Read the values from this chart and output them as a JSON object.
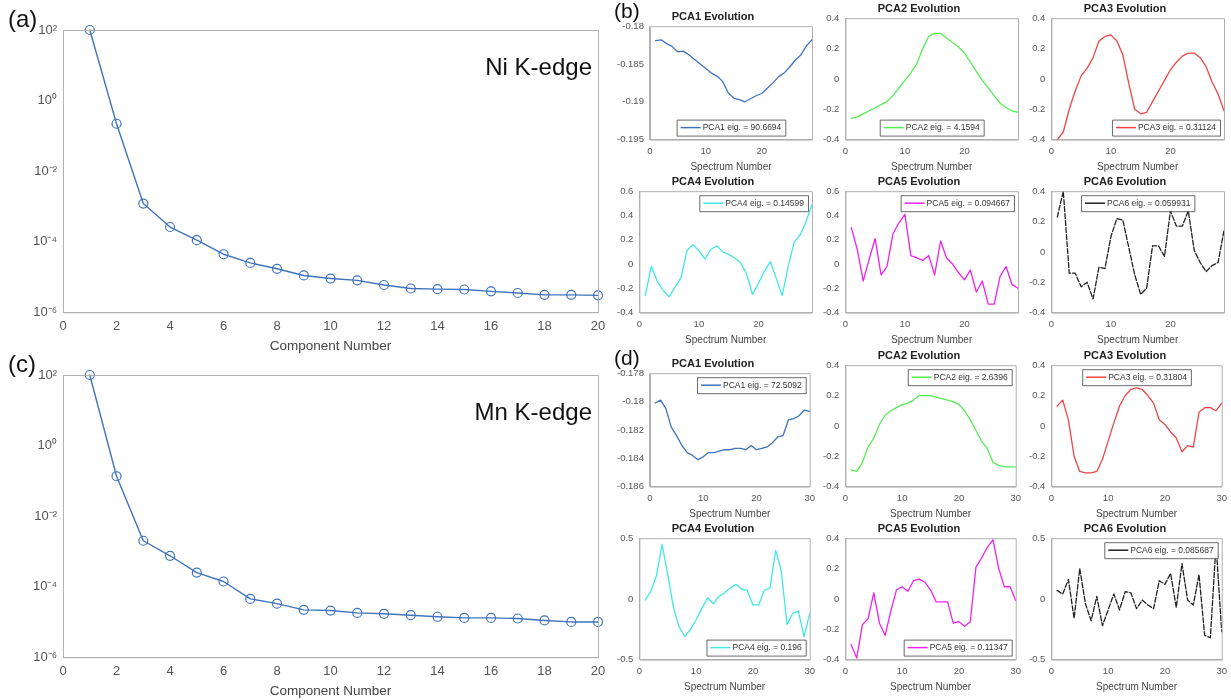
{
  "chart_data": [
    {
      "type": "line",
      "xlabel": "Component Number",
      "annotations": [
        "(a)",
        "Ni K-edge"
      ],
      "marker": "circle",
      "log": true,
      "xlim": [
        0,
        20
      ],
      "xticks": [
        0,
        2,
        4,
        6,
        8,
        10,
        12,
        14,
        16,
        18,
        20
      ],
      "ylim": [
        1e-06,
        100
      ],
      "yticks": [
        {
          "value": 1e-06,
          "label": "10⁻⁶"
        },
        {
          "value": 0.0001,
          "label": "10⁻⁴"
        },
        {
          "value": 0.01,
          "label": "10⁻²"
        },
        {
          "value": 1,
          "label": "10⁰"
        },
        {
          "value": 100,
          "label": "10²"
        }
      ],
      "x": [
        1,
        2,
        3,
        4,
        5,
        6,
        7,
        8,
        9,
        10,
        11,
        12,
        13,
        14,
        15,
        16,
        17,
        18,
        19,
        20
      ],
      "series": [
        {
          "color": "#3f74bd",
          "values": [
            100,
            0.22,
            0.0012,
            0.00026,
            0.00011,
            4.4e-05,
            2.5e-05,
            1.7e-05,
            1.1e-05,
            9e-06,
            8e-06,
            5.9e-06,
            4.7e-06,
            4.5e-06,
            4.4e-06,
            3.9e-06,
            3.5e-06,
            3.1e-06,
            3.1e-06,
            3e-06
          ]
        }
      ]
    },
    {
      "type": "line",
      "xlabel": "Component Number",
      "annotations": [
        "(c)",
        "Mn K-edge"
      ],
      "marker": "circle",
      "log": true,
      "xlim": [
        0,
        20
      ],
      "xticks": [
        0,
        2,
        4,
        6,
        8,
        10,
        12,
        14,
        16,
        18,
        20
      ],
      "ylim": [
        1e-06,
        100
      ],
      "yticks": [
        {
          "value": 1e-06,
          "label": "10⁻⁶"
        },
        {
          "value": 0.0001,
          "label": "10⁻⁴"
        },
        {
          "value": 0.01,
          "label": "10⁻²"
        },
        {
          "value": 1,
          "label": "10⁰"
        },
        {
          "value": 100,
          "label": "10²"
        }
      ],
      "x": [
        1,
        2,
        3,
        4,
        5,
        6,
        7,
        8,
        9,
        10,
        11,
        12,
        13,
        14,
        15,
        16,
        17,
        18,
        19,
        20
      ],
      "series": [
        {
          "color": "#3f74bd",
          "values": [
            100,
            0.135,
            0.002,
            0.00075,
            0.00025,
            0.00014,
            4.5e-05,
            3.3e-05,
            2.2e-05,
            2.1e-05,
            1.8e-05,
            1.7e-05,
            1.55e-05,
            1.4e-05,
            1.3e-05,
            1.3e-05,
            1.25e-05,
            1.1e-05,
            1e-05,
            1e-05
          ]
        }
      ]
    },
    {
      "type": "line",
      "title": "PCA1 Evolution",
      "xlabel": "Spectrum Number",
      "annotations": [
        "(b)"
      ],
      "legend": "bottom",
      "xlim": [
        0,
        29
      ],
      "xticks": [
        0,
        10,
        20
      ],
      "ylim": [
        -0.195,
        -0.18
      ],
      "yticks": [
        -0.195,
        -0.19,
        -0.185,
        -0.18
      ],
      "x": [
        1,
        2,
        3,
        4,
        5,
        6,
        7,
        8,
        9,
        10,
        11,
        12,
        13,
        14,
        15,
        16,
        17,
        18,
        19,
        20,
        21,
        22,
        23,
        24,
        25,
        26,
        27,
        28,
        29
      ],
      "series": [
        {
          "name": "PCA1 eig. = 90.6694",
          "color": "#3f74bd",
          "values": [
            -0.1819,
            -0.1818,
            -0.1823,
            -0.1827,
            -0.1834,
            -0.1833,
            -0.1838,
            -0.1844,
            -0.185,
            -0.1856,
            -0.1862,
            -0.1866,
            -0.1873,
            -0.1888,
            -0.1895,
            -0.1897,
            -0.19,
            -0.1896,
            -0.1892,
            -0.1889,
            -0.1882,
            -0.1875,
            -0.1867,
            -0.1862,
            -0.1854,
            -0.1845,
            -0.1838,
            -0.1826,
            -0.1818
          ]
        }
      ]
    },
    {
      "type": "line",
      "title": "PCA2 Evolution",
      "xlabel": "Spectrum Number",
      "legend": "bottom",
      "xlim": [
        0,
        29
      ],
      "xticks": [
        0,
        10,
        20
      ],
      "ylim": [
        -0.4,
        0.4
      ],
      "yticks": [
        -0.4,
        -0.2,
        0,
        0.2,
        0.4
      ],
      "x": [
        1,
        2,
        3,
        4,
        5,
        6,
        7,
        8,
        9,
        10,
        11,
        12,
        13,
        14,
        15,
        16,
        17,
        18,
        19,
        20,
        21,
        22,
        23,
        24,
        25,
        26,
        27,
        28,
        29
      ],
      "series": [
        {
          "name": "PCA2 eig. = 4.1594",
          "color": "#55ee55",
          "values": [
            -0.26,
            -0.25,
            -0.23,
            -0.21,
            -0.19,
            -0.17,
            -0.15,
            -0.11,
            -0.06,
            -0.01,
            0.04,
            0.1,
            0.2,
            0.28,
            0.3,
            0.3,
            0.27,
            0.24,
            0.21,
            0.17,
            0.11,
            0.05,
            -0.01,
            -0.06,
            -0.11,
            -0.16,
            -0.19,
            -0.21,
            -0.22
          ]
        }
      ]
    },
    {
      "type": "line",
      "title": "PCA3 Evolution",
      "xlabel": "Spectrum Number",
      "legend": "bottom right",
      "xlim": [
        0,
        29
      ],
      "xticks": [
        0,
        10,
        20
      ],
      "ylim": [
        -0.4,
        0.4
      ],
      "yticks": [
        -0.4,
        -0.2,
        0,
        0.2,
        0.4
      ],
      "x": [
        1,
        2,
        3,
        4,
        5,
        6,
        7,
        8,
        9,
        10,
        11,
        12,
        13,
        14,
        15,
        16,
        17,
        18,
        19,
        20,
        21,
        22,
        23,
        24,
        25,
        26,
        27,
        28,
        29
      ],
      "series": [
        {
          "name": "PCA3 eig. = 0.31124",
          "color": "#f04545",
          "values": [
            -0.4,
            -0.35,
            -0.2,
            -0.08,
            0.02,
            0.07,
            0.14,
            0.25,
            0.28,
            0.29,
            0.25,
            0.16,
            -0.03,
            -0.2,
            -0.23,
            -0.22,
            -0.15,
            -0.08,
            -0.01,
            0.06,
            0.11,
            0.15,
            0.17,
            0.17,
            0.14,
            0.08,
            -0.02,
            -0.1,
            -0.21
          ]
        }
      ]
    },
    {
      "type": "line",
      "title": "PCA4 Evolution",
      "xlabel": "Spectrum Number",
      "legend": "top right",
      "xlim": [
        0,
        29
      ],
      "xticks": [
        0,
        10,
        20
      ],
      "ylim": [
        -0.4,
        0.6
      ],
      "yticks": [
        -0.4,
        -0.2,
        0,
        0.2,
        0.4,
        0.6
      ],
      "x": [
        1,
        2,
        3,
        4,
        5,
        6,
        7,
        8,
        9,
        10,
        11,
        12,
        13,
        14,
        15,
        16,
        17,
        18,
        19,
        20,
        21,
        22,
        23,
        24,
        25,
        26,
        27,
        28,
        29
      ],
      "series": [
        {
          "name": "PCA4 eig. = 0.14599",
          "color": "#40e8e8",
          "values": [
            -0.26,
            -0.02,
            -0.14,
            -0.22,
            -0.27,
            -0.19,
            -0.11,
            0.11,
            0.16,
            0.11,
            0.04,
            0.12,
            0.15,
            0.1,
            0.08,
            0.05,
            0.01,
            -0.08,
            -0.25,
            -0.16,
            -0.06,
            0.02,
            -0.12,
            -0.26,
            -0.02,
            0.18,
            0.24,
            0.35,
            0.49
          ]
        }
      ]
    },
    {
      "type": "line",
      "title": "PCA5 Evolution",
      "xlabel": "Spectrum Number",
      "legend": "top right",
      "xlim": [
        0,
        29
      ],
      "xticks": [
        0,
        10,
        20
      ],
      "ylim": [
        -0.4,
        0.6
      ],
      "yticks": [
        -0.4,
        -0.2,
        0,
        0.2,
        0.4,
        0.6
      ],
      "x": [
        1,
        2,
        3,
        4,
        5,
        6,
        7,
        8,
        9,
        10,
        11,
        12,
        13,
        14,
        15,
        16,
        17,
        18,
        19,
        20,
        21,
        22,
        23,
        24,
        25,
        26,
        27,
        28,
        29
      ],
      "series": [
        {
          "name": "PCA5 eig. = 0.094667",
          "color": "#ee22ee",
          "values": [
            0.3,
            0.12,
            -0.14,
            0.04,
            0.21,
            -0.09,
            -0.02,
            0.25,
            0.34,
            0.41,
            0.07,
            0.05,
            0.03,
            0.07,
            -0.09,
            0.19,
            0.05,
            0,
            -0.07,
            -0.13,
            -0.05,
            -0.23,
            -0.14,
            -0.33,
            -0.33,
            -0.1,
            -0.02,
            -0.17,
            -0.2
          ]
        }
      ]
    },
    {
      "type": "line",
      "title": "PCA6 Evolution",
      "xlabel": "Spectrum Number",
      "legend": "top",
      "line_style": "dashed",
      "xlim": [
        0,
        29
      ],
      "xticks": [
        0,
        10,
        20
      ],
      "ylim": [
        -0.4,
        0.4
      ],
      "yticks": [
        -0.4,
        -0.2,
        0,
        0.2,
        0.4
      ],
      "x": [
        1,
        2,
        3,
        4,
        5,
        6,
        7,
        8,
        9,
        10,
        11,
        12,
        13,
        14,
        15,
        16,
        17,
        18,
        19,
        20,
        21,
        22,
        23,
        24,
        25,
        26,
        27,
        28,
        29
      ],
      "series": [
        {
          "name": "PCA6 eig. = 0.059931",
          "color": "#222222",
          "values": [
            0.23,
            0.4,
            -0.14,
            -0.14,
            -0.23,
            -0.2,
            -0.31,
            -0.1,
            -0.11,
            0.1,
            0.22,
            0.21,
            0.03,
            -0.15,
            -0.28,
            -0.24,
            0.04,
            0.04,
            -0.03,
            0.27,
            0.17,
            0.17,
            0.27,
            0.01,
            -0.07,
            -0.13,
            -0.09,
            -0.07,
            0.14
          ]
        }
      ]
    },
    {
      "type": "line",
      "title": "PCA1 Evolution",
      "xlabel": "Spectrum Number",
      "annotations": [
        "(d)"
      ],
      "legend": "top right",
      "xlim": [
        0,
        30
      ],
      "xticks": [
        0,
        10,
        20,
        30
      ],
      "ylim": [
        -0.186,
        -0.178
      ],
      "yticks": [
        -0.186,
        -0.184,
        -0.182,
        -0.18,
        -0.178
      ],
      "x": [
        1,
        2,
        3,
        4,
        5,
        6,
        7,
        8,
        9,
        10,
        11,
        12,
        13,
        14,
        15,
        16,
        17,
        18,
        19,
        20,
        21,
        22,
        23,
        24,
        25,
        26,
        27,
        28,
        29,
        30
      ],
      "series": [
        {
          "name": "PCA1 eig. = 72.5092",
          "color": "#3f74bd",
          "values": [
            -0.1801,
            -0.1799,
            -0.1805,
            -0.1818,
            -0.1824,
            -0.1831,
            -0.1836,
            -0.1838,
            -0.1841,
            -0.1839,
            -0.1836,
            -0.1836,
            -0.1835,
            -0.1834,
            -0.1834,
            -0.1833,
            -0.1833,
            -0.1834,
            -0.1831,
            -0.1834,
            -0.1833,
            -0.1832,
            -0.1829,
            -0.1825,
            -0.1824,
            -0.1813,
            -0.1812,
            -0.181,
            -0.1806,
            -0.1807
          ]
        }
      ]
    },
    {
      "type": "line",
      "title": "PCA2 Evolution",
      "xlabel": "Spectrum Number",
      "legend": "top right",
      "xlim": [
        0,
        30
      ],
      "xticks": [
        0,
        10,
        20,
        30
      ],
      "ylim": [
        -0.4,
        0.4
      ],
      "yticks": [
        -0.4,
        -0.2,
        0,
        0.2,
        0.4
      ],
      "x": [
        1,
        2,
        3,
        4,
        5,
        6,
        7,
        8,
        9,
        10,
        11,
        12,
        13,
        14,
        15,
        16,
        17,
        18,
        19,
        20,
        21,
        22,
        23,
        24,
        25,
        26,
        27,
        28,
        29,
        30
      ],
      "series": [
        {
          "name": "PCA2 eig. = 2.6396",
          "color": "#55ee55",
          "values": [
            -0.29,
            -0.3,
            -0.24,
            -0.14,
            -0.08,
            0.01,
            0.07,
            0.1,
            0.12,
            0.14,
            0.15,
            0.17,
            0.2,
            0.2,
            0.2,
            0.19,
            0.18,
            0.17,
            0.16,
            0.14,
            0.1,
            0.04,
            -0.03,
            -0.1,
            -0.15,
            -0.24,
            -0.26,
            -0.27,
            -0.27,
            -0.27
          ]
        }
      ]
    },
    {
      "type": "line",
      "title": "PCA3 Evolution",
      "xlabel": "Spectrum Number",
      "legend": "top",
      "xlim": [
        0,
        30
      ],
      "xticks": [
        0,
        10,
        20,
        30
      ],
      "ylim": [
        -0.4,
        0.4
      ],
      "yticks": [
        -0.4,
        -0.2,
        0,
        0.2,
        0.4
      ],
      "x": [
        1,
        2,
        3,
        4,
        5,
        6,
        7,
        8,
        9,
        10,
        11,
        12,
        13,
        14,
        15,
        16,
        17,
        18,
        19,
        20,
        21,
        22,
        23,
        24,
        25,
        26,
        27,
        28,
        29,
        30
      ],
      "series": [
        {
          "name": "PCA3 eig. = 0.31804",
          "color": "#f04545",
          "values": [
            0.13,
            0.17,
            0.04,
            -0.2,
            -0.3,
            -0.31,
            -0.31,
            -0.3,
            -0.22,
            -0.1,
            0.02,
            0.13,
            0.2,
            0.24,
            0.25,
            0.24,
            0.2,
            0.15,
            0.04,
            0.01,
            -0.04,
            -0.08,
            -0.17,
            -0.13,
            -0.14,
            0.09,
            0.12,
            0.12,
            0.1,
            0.15
          ]
        }
      ]
    },
    {
      "type": "line",
      "title": "PCA4 Evolution",
      "xlabel": "Spectrum Number",
      "legend": "bottom right",
      "xlim": [
        0,
        30
      ],
      "xticks": [
        0,
        10,
        20,
        30
      ],
      "ylim": [
        -0.5,
        0.5
      ],
      "yticks": [
        -0.5,
        0,
        0.5
      ],
      "x": [
        1,
        2,
        3,
        4,
        5,
        6,
        7,
        8,
        9,
        10,
        11,
        12,
        13,
        14,
        15,
        16,
        17,
        18,
        19,
        20,
        21,
        22,
        23,
        24,
        25,
        26,
        27,
        28,
        29,
        30
      ],
      "series": [
        {
          "name": "PCA4 eig. = 0.196",
          "color": "#40e8e8",
          "values": [
            -0.01,
            0.06,
            0.19,
            0.45,
            0.2,
            -0.07,
            -0.23,
            -0.31,
            -0.25,
            -0.17,
            -0.08,
            0.01,
            -0.04,
            0.02,
            0.05,
            0.09,
            0.12,
            0.08,
            0.07,
            -0.05,
            -0.05,
            0.07,
            0.09,
            0.4,
            0.23,
            -0.21,
            -0.12,
            -0.1,
            -0.31,
            -0.12
          ]
        }
      ]
    },
    {
      "type": "line",
      "title": "PCA5 Evolution",
      "xlabel": "Spectrum Number",
      "legend": "bottom right",
      "xlim": [
        0,
        30
      ],
      "xticks": [
        0,
        10,
        20,
        30
      ],
      "ylim": [
        -0.4,
        0.4
      ],
      "yticks": [
        -0.4,
        -0.2,
        0,
        0.2,
        0.4
      ],
      "x": [
        1,
        2,
        3,
        4,
        5,
        6,
        7,
        8,
        9,
        10,
        11,
        12,
        13,
        14,
        15,
        16,
        17,
        18,
        19,
        20,
        21,
        22,
        23,
        24,
        25,
        26,
        27,
        28,
        29,
        30
      ],
      "series": [
        {
          "name": "PCA5 eig. = 0.11347",
          "color": "#ee22ee",
          "values": [
            -0.3,
            -0.39,
            -0.17,
            -0.13,
            0.04,
            -0.16,
            -0.24,
            -0.08,
            0.06,
            0.08,
            0.05,
            0.12,
            0.13,
            0.11,
            0.06,
            -0.02,
            -0.02,
            -0.02,
            -0.16,
            -0.15,
            -0.18,
            -0.15,
            0.21,
            0.27,
            0.34,
            0.39,
            0.2,
            0.08,
            0.08,
            -0.01
          ]
        }
      ]
    },
    {
      "type": "line",
      "title": "PCA6 Evolution",
      "xlabel": "Spectrum Number",
      "legend": "top right",
      "line_style": "dashed",
      "xlim": [
        0,
        30
      ],
      "xticks": [
        0,
        10,
        20,
        30
      ],
      "ylim": [
        -0.5,
        0.5
      ],
      "yticks": [
        -0.5,
        0,
        0.5
      ],
      "x": [
        1,
        2,
        3,
        4,
        5,
        6,
        7,
        8,
        9,
        10,
        11,
        12,
        13,
        14,
        15,
        16,
        17,
        18,
        19,
        20,
        21,
        22,
        23,
        24,
        25,
        26,
        27,
        28,
        29,
        30
      ],
      "series": [
        {
          "name": "PCA6 eig. = 0.085687",
          "color": "#222222",
          "values": [
            0.07,
            0.04,
            0.16,
            -0.16,
            0.25,
            -0.04,
            -0.18,
            0.02,
            -0.22,
            -0.09,
            0.04,
            -0.09,
            0.06,
            0.05,
            -0.08,
            -0.01,
            -0.05,
            -0.08,
            0.15,
            0.12,
            0.21,
            -0.07,
            0.29,
            -0.01,
            -0.05,
            0.2,
            -0.3,
            -0.32,
            0.45,
            -0.27
          ]
        }
      ]
    }
  ]
}
